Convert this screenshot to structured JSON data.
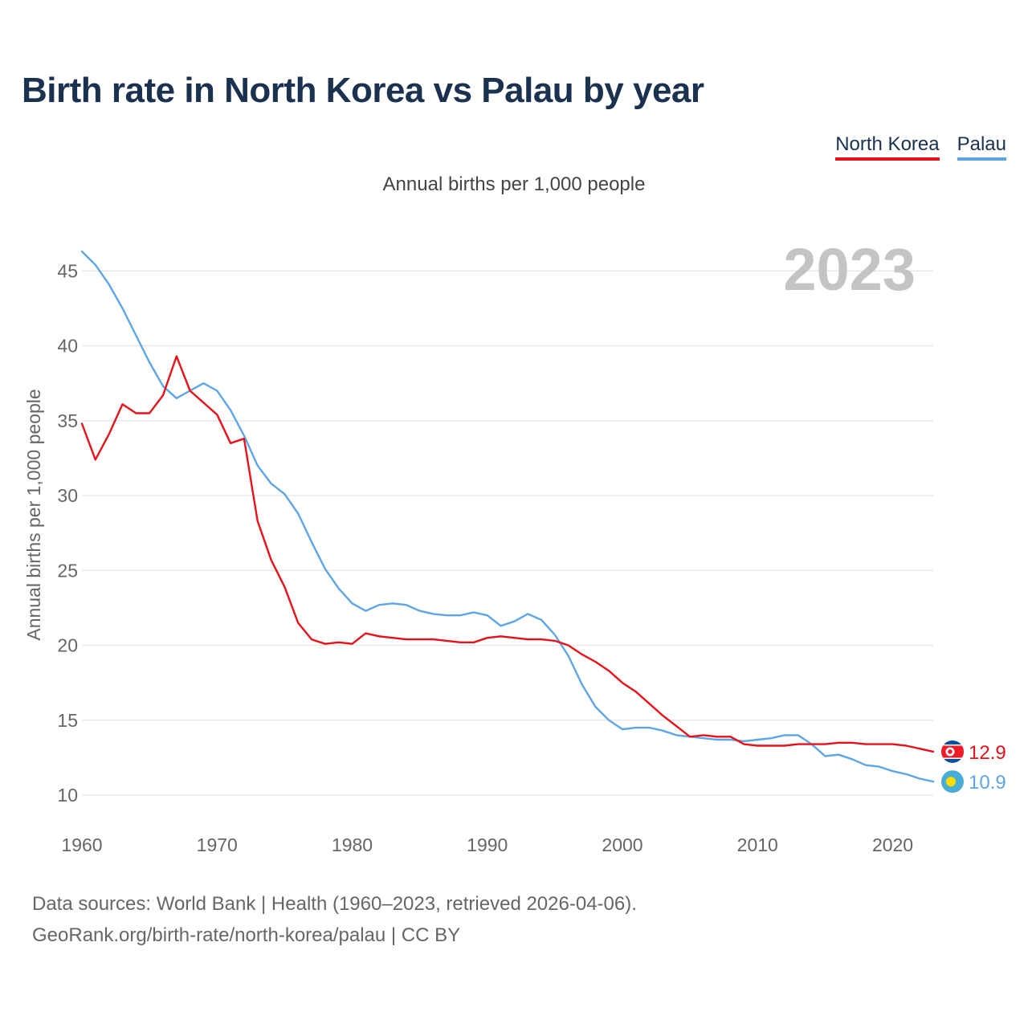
{
  "title": "Birth rate in North Korea vs Palau by year",
  "subtitle": "Annual births per 1,000 people",
  "footer": {
    "sources": "Data sources: World Bank | Health (1960–2023, retrieved 2026-04-06).",
    "attribution": "GeoRank.org/birth-rate/north-korea/palau | CC BY"
  },
  "chart_data": {
    "type": "line",
    "title": "Birth rate in North Korea vs Palau by year",
    "ylabel": "Annual births per 1,000 people",
    "xlabel": "",
    "year_label": "2023",
    "xlim": [
      1960,
      2023
    ],
    "ylim": [
      8.5,
      47
    ],
    "x_ticks": [
      1960,
      1970,
      1980,
      1990,
      2000,
      2010,
      2020
    ],
    "y_ticks": [
      10,
      15,
      20,
      25,
      30,
      35,
      40,
      45
    ],
    "grid": true,
    "legend_position": "top-right",
    "x": [
      1960,
      1961,
      1962,
      1963,
      1964,
      1965,
      1966,
      1967,
      1968,
      1969,
      1970,
      1971,
      1972,
      1973,
      1974,
      1975,
      1976,
      1977,
      1978,
      1979,
      1980,
      1981,
      1982,
      1983,
      1984,
      1985,
      1986,
      1987,
      1988,
      1989,
      1990,
      1991,
      1992,
      1993,
      1994,
      1995,
      1996,
      1997,
      1998,
      1999,
      2000,
      2001,
      2002,
      2003,
      2004,
      2005,
      2006,
      2007,
      2008,
      2009,
      2010,
      2011,
      2012,
      2013,
      2014,
      2015,
      2016,
      2017,
      2018,
      2019,
      2020,
      2021,
      2022,
      2023
    ],
    "series": [
      {
        "name": "North Korea",
        "color": "#e8111a",
        "end_label": "12.9",
        "values": [
          34.8,
          32.4,
          34.1,
          36.1,
          35.5,
          35.5,
          36.7,
          39.3,
          37.0,
          36.2,
          35.4,
          33.5,
          33.8,
          28.3,
          25.7,
          23.9,
          21.5,
          20.4,
          20.1,
          20.2,
          20.1,
          20.8,
          20.6,
          20.5,
          20.4,
          20.4,
          20.4,
          20.3,
          20.2,
          20.2,
          20.5,
          20.6,
          20.5,
          20.4,
          20.4,
          20.3,
          20.0,
          19.4,
          18.9,
          18.3,
          17.5,
          16.9,
          16.1,
          15.3,
          14.6,
          13.9,
          14.0,
          13.9,
          13.9,
          13.4,
          13.3,
          13.3,
          13.3,
          13.4,
          13.4,
          13.4,
          13.5,
          13.5,
          13.4,
          13.4,
          13.4,
          13.3,
          13.1,
          12.9
        ]
      },
      {
        "name": "Palau",
        "color": "#5ea5e6",
        "end_label": "10.9",
        "values": [
          46.3,
          45.4,
          44.1,
          42.5,
          40.7,
          38.9,
          37.3,
          36.5,
          37.0,
          37.5,
          37.0,
          35.7,
          34.0,
          32.0,
          30.8,
          30.1,
          28.8,
          26.9,
          25.1,
          23.8,
          22.8,
          22.3,
          22.7,
          22.8,
          22.7,
          22.3,
          22.1,
          22.0,
          22.0,
          22.2,
          22.0,
          21.3,
          21.6,
          22.1,
          21.7,
          20.7,
          19.3,
          17.4,
          15.9,
          15.0,
          14.4,
          14.5,
          14.5,
          14.3,
          14.0,
          13.9,
          13.8,
          13.7,
          13.7,
          13.6,
          13.7,
          13.8,
          14.0,
          14.0,
          13.4,
          12.6,
          12.7,
          12.4,
          12.0,
          11.9,
          11.6,
          11.4,
          11.1,
          10.9
        ]
      }
    ]
  },
  "colors": {
    "title": "#1a3150",
    "grid": "#e6e6e6",
    "axis_text": "#666666",
    "year_watermark": "#c4c4c4",
    "north_korea_flag_blue": "#024fa2",
    "north_korea_flag_red": "#ed1c27",
    "palau_flag_blue": "#4aadd6",
    "palau_flag_yellow": "#ffde00"
  },
  "icons": {
    "north_korea": "north-korea-flag-icon",
    "palau": "palau-flag-icon"
  }
}
